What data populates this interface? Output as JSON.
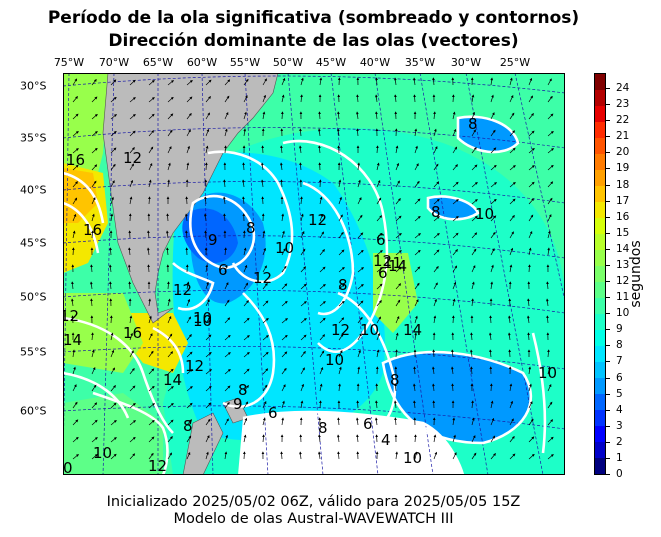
{
  "title_line1": "Período de la ola significativa (sombreado y contornos)",
  "title_line2": "Dirección dominante de las olas (vectores)",
  "longitude_labels": [
    "75°W",
    "70°W",
    "65°W",
    "60°W",
    "55°W",
    "50°W",
    "45°W",
    "40°W",
    "35°W",
    "30°W",
    "25°W"
  ],
  "latitude_labels": [
    "30°S",
    "35°S",
    "40°S",
    "45°S",
    "50°S",
    "55°S",
    "60°S"
  ],
  "colorbar": {
    "label": "segundos",
    "ticks": [
      "0",
      "1",
      "2",
      "3",
      "4",
      "5",
      "6",
      "7",
      "8",
      "9",
      "10",
      "11",
      "12",
      "13",
      "14",
      "15",
      "16",
      "17",
      "18",
      "19",
      "20",
      "21",
      "22",
      "23",
      "24"
    ],
    "colors": [
      "#00007f",
      "#0000c8",
      "#0000ff",
      "#0033ff",
      "#0066ff",
      "#0099ff",
      "#00c3ff",
      "#00e6ff",
      "#00ffe6",
      "#1dffc8",
      "#3dffa8",
      "#5dff88",
      "#7aff6a",
      "#98ff4b",
      "#b8ff2a",
      "#d6ff0b",
      "#f4e800",
      "#ffc400",
      "#ffa000",
      "#ff7b00",
      "#ff5400",
      "#ff2c00",
      "#e60000",
      "#b30000",
      "#800000"
    ]
  },
  "contour_labels": [
    "16",
    "16",
    "8",
    "8",
    "10",
    "12",
    "6",
    "8",
    "10",
    "12",
    "9",
    "6",
    "12",
    "11",
    "10",
    "12",
    "8",
    "12",
    "6",
    "14",
    "14",
    "10",
    "10",
    "12",
    "16",
    "10",
    "12",
    "14",
    "8",
    "8",
    "9",
    "6",
    "8",
    "6",
    "4",
    "10",
    "10",
    "8",
    "10",
    "12",
    "0",
    "12",
    "14"
  ],
  "footer_line1": "Inicializado 2025/05/02 06Z, válido para 2025/05/05 15Z",
  "footer_line2": "Modelo de olas Austral-WAVEWATCH III",
  "colors": {
    "land": "#bbbbbb",
    "graticule": "#1a1aa6",
    "contour": "#ffffff"
  }
}
